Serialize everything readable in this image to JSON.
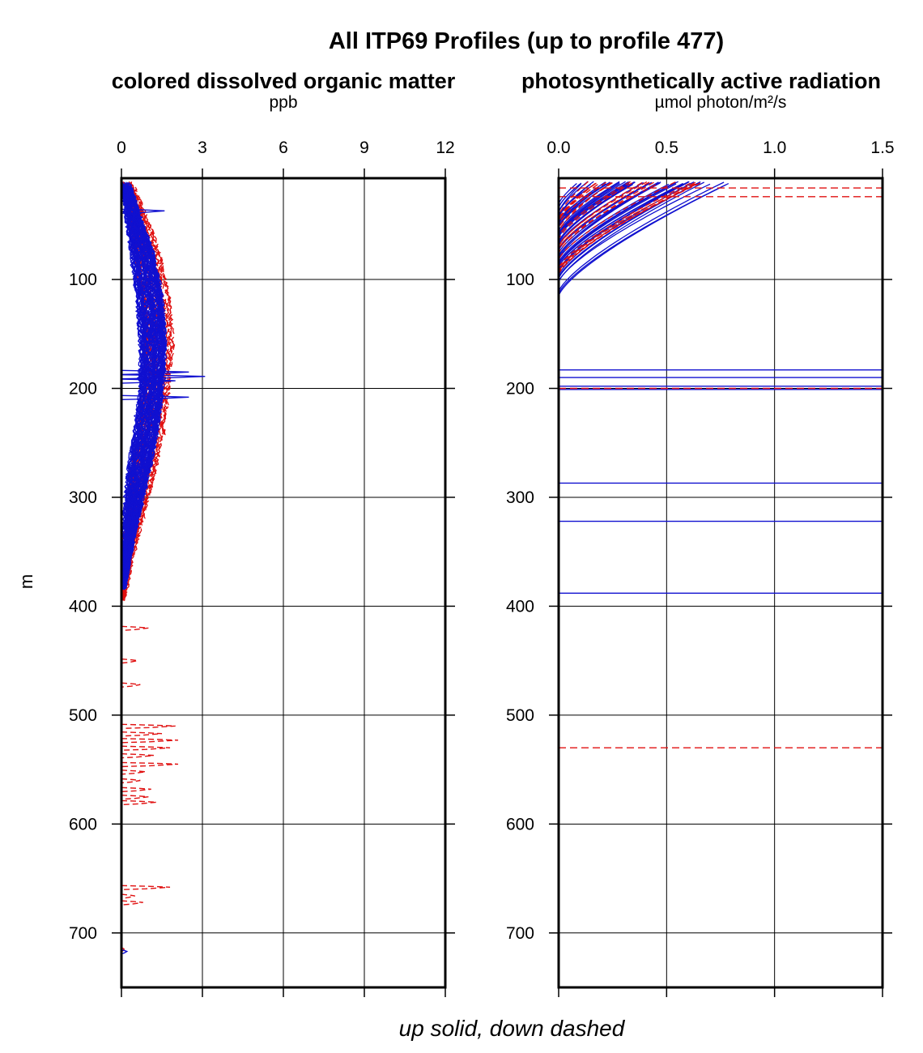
{
  "title": "All ITP69 Profiles (up to profile 477)",
  "ylabel": "m",
  "footer": "up solid, down dashed",
  "colors": {
    "up": "#1010d0",
    "down": "#e01010",
    "grid": "#000000",
    "frame": "#000000"
  },
  "chart_data": [
    {
      "type": "line",
      "title": "colored dissolved organic matter",
      "unit": "ppb",
      "xlim": [
        0,
        12
      ],
      "xticks": [
        0,
        3,
        6,
        9,
        12
      ],
      "xtick_labels": [
        "0",
        "3",
        "6",
        "9",
        "12"
      ],
      "ylim": [
        750,
        7
      ],
      "yticks": [
        100,
        200,
        300,
        400,
        500,
        600,
        700
      ],
      "ytick_labels": [
        "100",
        "200",
        "300",
        "400",
        "500",
        "600",
        "700"
      ],
      "grid": true,
      "series": [
        {
          "style": "up solid",
          "envelope": [
            {
              "depth": 10,
              "mean": 0.15,
              "width": 0.15
            },
            {
              "depth": 40,
              "mean": 0.4,
              "width": 0.3
            },
            {
              "depth": 80,
              "mean": 0.8,
              "width": 0.5
            },
            {
              "depth": 120,
              "mean": 1.05,
              "width": 0.55
            },
            {
              "depth": 160,
              "mean": 1.15,
              "width": 0.55
            },
            {
              "depth": 200,
              "mean": 1.1,
              "width": 0.5
            },
            {
              "depth": 240,
              "mean": 0.9,
              "width": 0.5
            },
            {
              "depth": 280,
              "mean": 0.6,
              "width": 0.45
            },
            {
              "depth": 320,
              "mean": 0.35,
              "width": 0.3
            },
            {
              "depth": 360,
              "mean": 0.15,
              "width": 0.15
            },
            {
              "depth": 385,
              "mean": 0.05,
              "width": 0.05
            }
          ],
          "spikes": [
            {
              "depth": 37,
              "value": 1.6
            },
            {
              "depth": 185,
              "value": 2.5
            },
            {
              "depth": 189,
              "value": 3.1
            },
            {
              "depth": 193,
              "value": 2.0
            },
            {
              "depth": 208,
              "value": 2.5
            },
            {
              "depth": 717,
              "value": 0.2
            }
          ]
        },
        {
          "style": "down dashed",
          "envelope": [
            {
              "depth": 10,
              "mean": 0.2,
              "width": 0.2
            },
            {
              "depth": 40,
              "mean": 0.6,
              "width": 0.35
            },
            {
              "depth": 80,
              "mean": 1.0,
              "width": 0.55
            },
            {
              "depth": 120,
              "mean": 1.3,
              "width": 0.6
            },
            {
              "depth": 160,
              "mean": 1.4,
              "width": 0.6
            },
            {
              "depth": 200,
              "mean": 1.3,
              "width": 0.55
            },
            {
              "depth": 240,
              "mean": 1.1,
              "width": 0.55
            },
            {
              "depth": 280,
              "mean": 0.8,
              "width": 0.5
            },
            {
              "depth": 320,
              "mean": 0.5,
              "width": 0.35
            },
            {
              "depth": 360,
              "mean": 0.2,
              "width": 0.2
            },
            {
              "depth": 395,
              "mean": 0.05,
              "width": 0.05
            }
          ],
          "spikes": [
            {
              "depth": 420,
              "value": 1.0
            },
            {
              "depth": 450,
              "value": 0.6
            },
            {
              "depth": 472,
              "value": 0.7
            },
            {
              "depth": 510,
              "value": 2.0
            },
            {
              "depth": 517,
              "value": 1.5
            },
            {
              "depth": 523,
              "value": 2.1
            },
            {
              "depth": 530,
              "value": 1.8
            },
            {
              "depth": 537,
              "value": 1.2
            },
            {
              "depth": 545,
              "value": 2.1
            },
            {
              "depth": 552,
              "value": 0.9
            },
            {
              "depth": 560,
              "value": 0.7
            },
            {
              "depth": 568,
              "value": 1.1
            },
            {
              "depth": 575,
              "value": 1.0
            },
            {
              "depth": 580,
              "value": 1.3
            },
            {
              "depth": 658,
              "value": 1.8
            },
            {
              "depth": 666,
              "value": 0.5
            },
            {
              "depth": 672,
              "value": 0.8
            },
            {
              "depth": 715,
              "value": 0.1
            }
          ]
        }
      ]
    },
    {
      "type": "line",
      "title": "photosynthetically active radiation",
      "unit": "µmol photon/m²/s",
      "xlim": [
        0,
        1.5
      ],
      "xticks": [
        0,
        0.5,
        1.0,
        1.5
      ],
      "xtick_labels": [
        "0.0",
        "0.5",
        "1.0",
        "1.5"
      ],
      "ylim": [
        750,
        7
      ],
      "yticks": [
        100,
        200,
        300,
        400,
        500,
        600,
        700
      ],
      "ytick_labels": [
        "100",
        "200",
        "300",
        "400",
        "500",
        "600",
        "700"
      ],
      "grid": true,
      "series": [
        {
          "style": "up solid",
          "surface_value_range": [
            0.05,
            0.82
          ],
          "extinction_depth_range": [
            30,
            118
          ],
          "horizontal_spikes": [
            183,
            190,
            198,
            201,
            287,
            322,
            388
          ]
        },
        {
          "style": "down dashed",
          "surface_value_range": [
            0.1,
            0.7
          ],
          "extinction_depth_range": [
            40,
            100
          ],
          "horizontal_spikes": [
            16,
            24,
            200,
            530
          ]
        }
      ]
    }
  ]
}
